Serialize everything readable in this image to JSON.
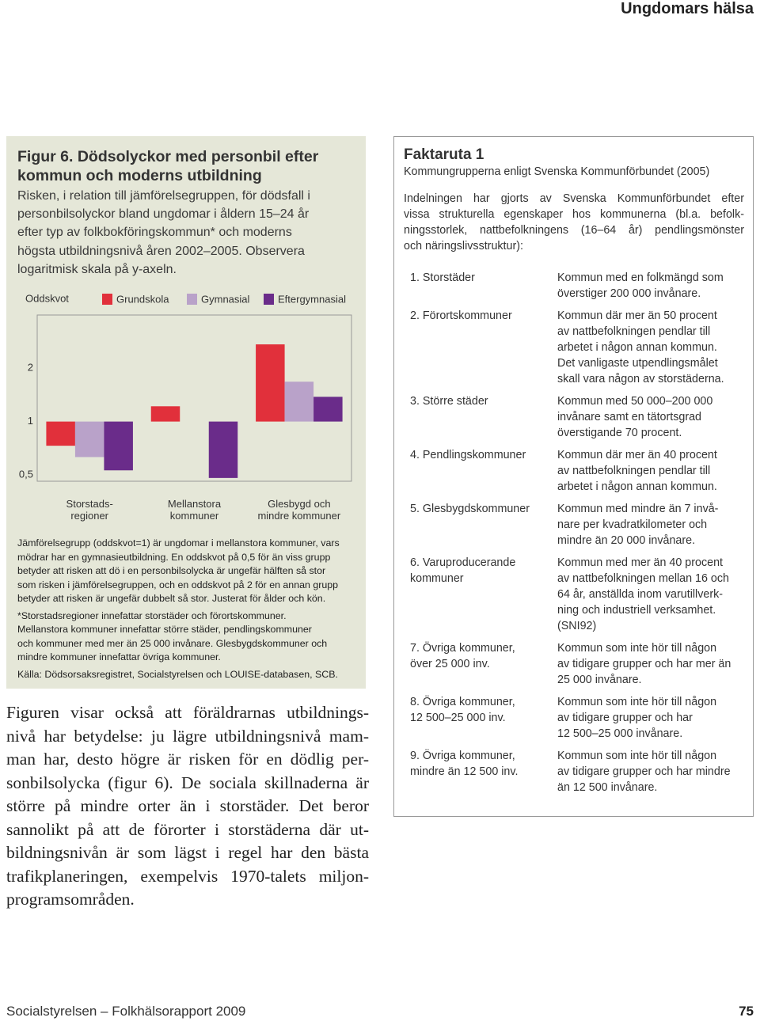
{
  "header": {
    "title": "Ungdomars hälsa"
  },
  "figure": {
    "title": [
      "Figur 6. Dödsolyckor med personbil efter",
      "kommun och moderns utbildning"
    ],
    "subtitle": [
      "Risken, i relation till jämförelsegruppen, för dödsfall i",
      "personbilsolyckor bland ungdomar i åldern 15–24 år",
      "efter typ av folkbokföringskommun* och moderns",
      "högsta utbildningsnivå åren 2002–2005. Observera",
      "logaritmisk skala på y-axeln."
    ],
    "notes": [
      [
        "Jämförelsegrupp (oddskvot=1) är ungdomar i mellanstora kommuner, vars",
        "mödrar har en gymnasieutbildning. En oddskvot på 0,5 för än viss grupp",
        "betyder att risken att dö i en personbilsolycka är ungefär hälften så stor",
        "som risken i jämförelsegruppen, och en oddskvot på 2 för en annan grupp",
        "betyder att risken är ungefär dubbelt så stor. Justerat för ålder och kön."
      ],
      [
        "*Storstadsregioner innefattar storstäder och förortskommuner.",
        "Mellanstora kommuner innefattar större städer, pendlingskommuner",
        "och kommuner med mer än 25 000 invånare. Glesbygdskommuner och",
        "mindre kommuner innefattar övriga kommuner."
      ],
      [
        "Källa: Dödsorsaksregistret, Socialstyrelsen och LOUISE-databasen, SCB."
      ]
    ]
  },
  "chart_data": {
    "type": "bar",
    "y_label": "Oddskvot",
    "log_scale": true,
    "categories": [
      "Storstads-\nregioner",
      "Mellanstora\nkommuner",
      "Glesbygd och\nmindre kommuner"
    ],
    "series": [
      {
        "name": "Grundskola",
        "color": "#e1303b",
        "values": [
          0.73,
          1.22,
          2.73
        ]
      },
      {
        "name": "Gymnasial",
        "color": "#b9a2c9",
        "values": [
          0.63,
          1,
          1.68
        ]
      },
      {
        "name": "Eftergymnasial",
        "color": "#6a2c8a",
        "values": [
          0.53,
          0.48,
          1.38
        ]
      }
    ],
    "ylim": [
      0.46,
      4
    ],
    "yticks": [
      {
        "value": 0.5,
        "label": "0,5"
      },
      1,
      2
    ]
  },
  "body": [
    "Figuren visar också att föräldrarnas utbildnings-",
    "nivå har betydelse: ju lägre utbildningsnivå mam-",
    "man har, desto högre är risken för en dödlig per-",
    "sonbilsolycka (figur 6). De sociala skillnaderna är",
    "större på mindre orter än i storstäder. Det beror",
    "sannolikt på att de förorter i storstäderna där ut-",
    "bildningsnivån är som lägst i regel har den bästa",
    "trafikplaneringen, exempelvis 1970-talets miljon-",
    "programsområden."
  ],
  "factbox": {
    "title": "Faktaruta 1",
    "subtitle": "Kommungrupperna enligt Svenska Kommunförbundet (2005)",
    "intro": [
      "Indelningen har gjorts av Svenska Kommunförbundet efter",
      "vissa strukturella egenskaper hos kommunerna (bl.a. befolk-",
      "ningsstorlek, nattbefolkningens (16–64 år) pendlingsmönster",
      "och näringslivsstruktur):"
    ],
    "items": [
      {
        "name": [
          "1. Storstäder"
        ],
        "description": [
          "Kommun med en folkmängd som",
          "överstiger 200 000 invånare."
        ]
      },
      {
        "name": [
          "2. Förortskommuner"
        ],
        "description": [
          "Kommun där mer än 50 procent",
          "av nattbefolkningen pendlar till",
          "arbetet i någon annan kommun.",
          "Det vanligaste utpendlingsmålet",
          "skall vara någon av storstäderna."
        ]
      },
      {
        "name": [
          "3. Större städer"
        ],
        "description": [
          "Kommun med 50 000–200 000",
          "invånare samt en tätortsgrad",
          "överstigande 70 procent."
        ]
      },
      {
        "name": [
          "4. Pendlingskommuner"
        ],
        "description": [
          "Kommun där mer än 40 procent",
          "av nattbefolkningen pendlar till",
          "arbetet i någon annan kommun."
        ]
      },
      {
        "name": [
          "5. Glesbygdskommuner"
        ],
        "description": [
          "Kommun med mindre än 7 invå-",
          "nare per kvadratkilometer och",
          "mindre än 20 000 invånare."
        ]
      },
      {
        "name": [
          "6. Varuproducerande",
          "kommuner"
        ],
        "description": [
          "Kommun med mer än 40 procent",
          "av nattbefolkningen mellan 16 och",
          "64 år, anställda inom varutillverk-",
          "ning och industriell verksamhet.",
          "(SNI92)"
        ]
      },
      {
        "name": [
          "7. Övriga kommuner,",
          "över 25 000 inv."
        ],
        "description": [
          "Kommun som inte hör till någon",
          "av tidigare grupper och har mer än",
          "25 000 invånare."
        ]
      },
      {
        "name": [
          "8. Övriga kommuner,",
          "12 500–25 000 inv."
        ],
        "description": [
          "Kommun som inte hör till någon",
          "av tidigare grupper och har",
          "12 500–25 000 invånare."
        ]
      },
      {
        "name": [
          "9.  Övriga kommuner,",
          "mindre än 12 500 inv."
        ],
        "description": [
          "Kommun som inte hör till någon",
          "av tidigare grupper och har mindre",
          "än 12 500 invånare."
        ]
      }
    ]
  },
  "footer": {
    "source": "Socialstyrelsen – Folkhälsorapport 2009",
    "page": "75"
  }
}
